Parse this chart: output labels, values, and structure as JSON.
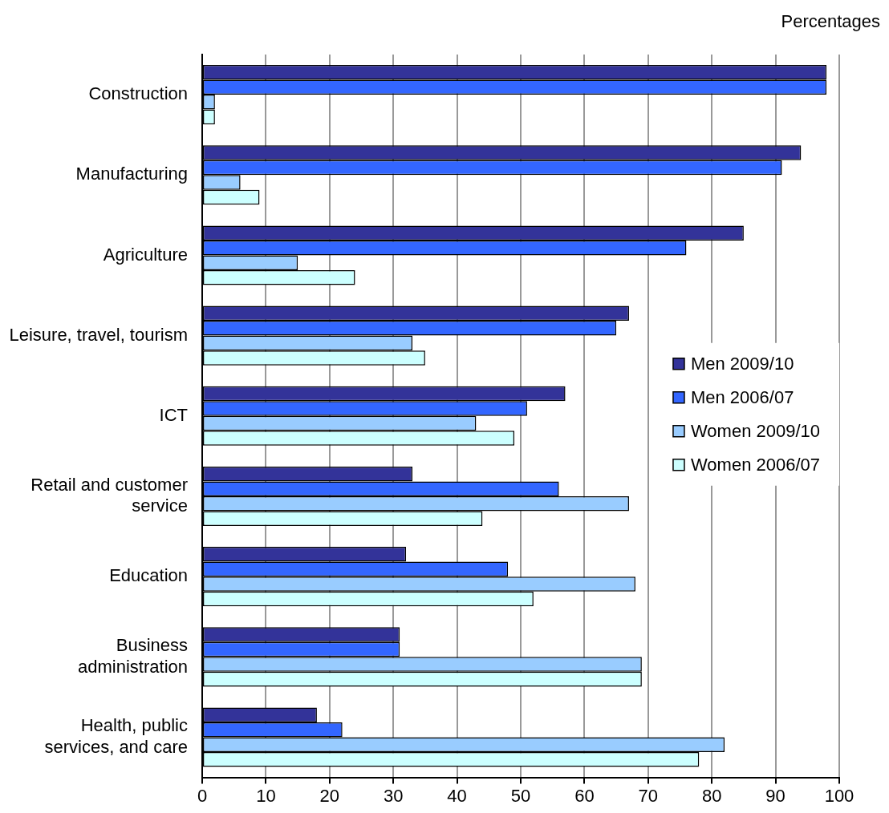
{
  "chart_data": {
    "type": "bar",
    "orientation": "horizontal",
    "xlabel": "Percentages",
    "categories": [
      "Construction",
      "Manufacturing",
      "Agriculture",
      "Leisure, travel, tourism",
      "ICT",
      "Retail and customer service",
      "Education",
      "Business administration",
      "Health, public services, and care"
    ],
    "series": [
      {
        "name": "Men 2009/10",
        "color": "#333399",
        "values": [
          98,
          94,
          85,
          67,
          57,
          33,
          32,
          31,
          18
        ]
      },
      {
        "name": "Men 2006/07",
        "color": "#3366ff",
        "values": [
          98,
          91,
          76,
          65,
          51,
          56,
          48,
          31,
          22
        ]
      },
      {
        "name": "Women 2009/10",
        "color": "#99ccff",
        "values": [
          2,
          6,
          15,
          33,
          43,
          67,
          68,
          69,
          82
        ]
      },
      {
        "name": "Women 2006/07",
        "color": "#ccffff",
        "values": [
          2,
          9,
          24,
          35,
          49,
          44,
          52,
          69,
          78
        ]
      }
    ],
    "xlim": [
      0,
      100
    ],
    "xticks": [
      0,
      10,
      20,
      30,
      40,
      50,
      60,
      70,
      80,
      90,
      100
    ],
    "grid": "x",
    "legend": "right"
  }
}
